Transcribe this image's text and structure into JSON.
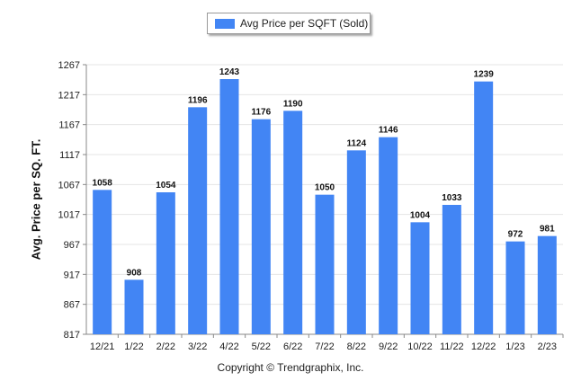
{
  "legend": {
    "label": "Avg Price per SQFT (Sold)"
  },
  "copyright": "Copyright © Trendgraphix, Inc.",
  "chart_data": {
    "type": "bar",
    "categories": [
      "12/21",
      "1/22",
      "2/22",
      "3/22",
      "4/22",
      "5/22",
      "6/22",
      "7/22",
      "8/22",
      "9/22",
      "10/22",
      "11/22",
      "12/22",
      "1/23",
      "2/23"
    ],
    "series": [
      {
        "name": "Avg Price per SQFT (Sold)",
        "values": [
          1058,
          908,
          1054,
          1196,
          1243,
          1176,
          1190,
          1050,
          1124,
          1146,
          1004,
          1033,
          1239,
          972,
          981
        ]
      }
    ],
    "ylabel": "Avg. Price per SQ. FT.",
    "xlabel": "",
    "ylim": [
      817,
      1267
    ],
    "yticks": [
      817,
      867,
      917,
      967,
      1017,
      1067,
      1117,
      1167,
      1217,
      1267
    ],
    "grid": true,
    "legend_position": "top-center",
    "bar_color": "#4285f4",
    "data_labels": true
  }
}
